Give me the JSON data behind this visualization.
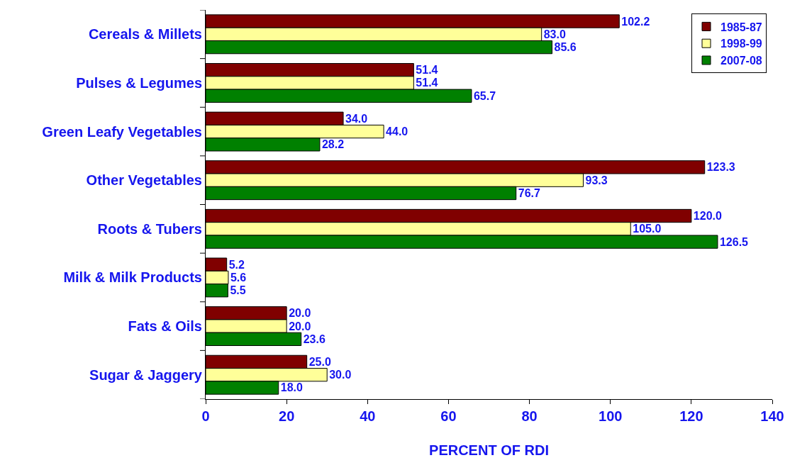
{
  "chart_data": {
    "type": "bar",
    "orientation": "horizontal",
    "xlabel": "PERCENT OF RDI",
    "categories": [
      "Cereals & Millets",
      "Pulses & Legumes",
      "Green Leafy Vegetables",
      "Other Vegetables",
      "Roots & Tubers",
      "Milk & Milk Products",
      "Fats & Oils",
      "Sugar & Jaggery"
    ],
    "series": [
      {
        "name": "1985-87",
        "color": "#800000",
        "values": [
          102.2,
          51.4,
          34.0,
          123.3,
          120.0,
          5.2,
          20.0,
          25.0
        ],
        "value_labels": [
          "102.2",
          "51.4",
          "34.0",
          "123.3",
          "120.0",
          "5.2",
          "20.0",
          "25.0"
        ]
      },
      {
        "name": "1998-99",
        "color": "#ffff99",
        "values": [
          83.0,
          51.4,
          44.0,
          93.3,
          105.0,
          5.6,
          20.0,
          30.0
        ],
        "value_labels": [
          "83.0",
          "51.4",
          "44.0",
          "93.3",
          "105.0",
          "5.6",
          "20.0",
          "30.0"
        ]
      },
      {
        "name": "2007-08",
        "color": "#008000",
        "values": [
          85.6,
          65.7,
          28.2,
          76.7,
          126.5,
          5.5,
          23.6,
          18.0
        ],
        "value_labels": [
          "85.6",
          "65.7",
          "28.2",
          "76.7",
          "126.5",
          "5.5",
          "23.6",
          "18.0"
        ]
      }
    ],
    "xlim": [
      0,
      140
    ],
    "xticks": [
      0,
      20,
      40,
      60,
      80,
      100,
      120,
      140
    ],
    "grid": false,
    "legend": "top right"
  }
}
